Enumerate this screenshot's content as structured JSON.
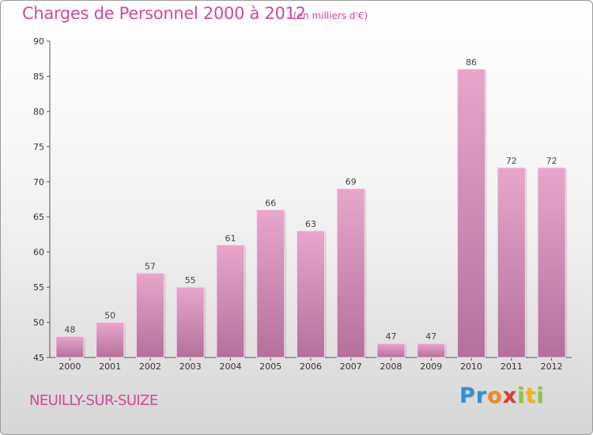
{
  "header": {
    "title": "Charges de Personnel 2000 à 2012",
    "unit_note": "(en milliers d'€)"
  },
  "footer": {
    "commune": "NEUILLY-SUR-SUIZE",
    "logo_letters": [
      {
        "ch": "P",
        "color": "#2f8fd6"
      },
      {
        "ch": "r",
        "color": "#2f8fd6"
      },
      {
        "ch": "o",
        "color": "#f08a1c"
      },
      {
        "ch": "x",
        "color": "#e03a2f"
      },
      {
        "ch": "i",
        "color": "#8cc63f"
      },
      {
        "ch": "t",
        "color": "#f2b705"
      },
      {
        "ch": "i",
        "color": "#8cc63f"
      }
    ]
  },
  "colors": {
    "accent": "#d0499b",
    "bar_top": "#e8a6cb",
    "bar_bottom": "#b4709a"
  },
  "chart_data": {
    "type": "bar",
    "title": "Charges de Personnel 2000 à 2012",
    "subtitle": "(en milliers d'€)",
    "xlabel": "",
    "ylabel": "",
    "categories": [
      "2000",
      "2001",
      "2002",
      "2003",
      "2004",
      "2005",
      "2006",
      "2007",
      "2008",
      "2009",
      "2010",
      "2011",
      "2012"
    ],
    "values": [
      48,
      50,
      57,
      55,
      61,
      66,
      63,
      69,
      47,
      47,
      86,
      72,
      72
    ],
    "ylim": [
      45,
      90
    ],
    "yticks": [
      45,
      50,
      55,
      60,
      65,
      70,
      75,
      80,
      85,
      90
    ],
    "grid": false,
    "legend": "none"
  }
}
